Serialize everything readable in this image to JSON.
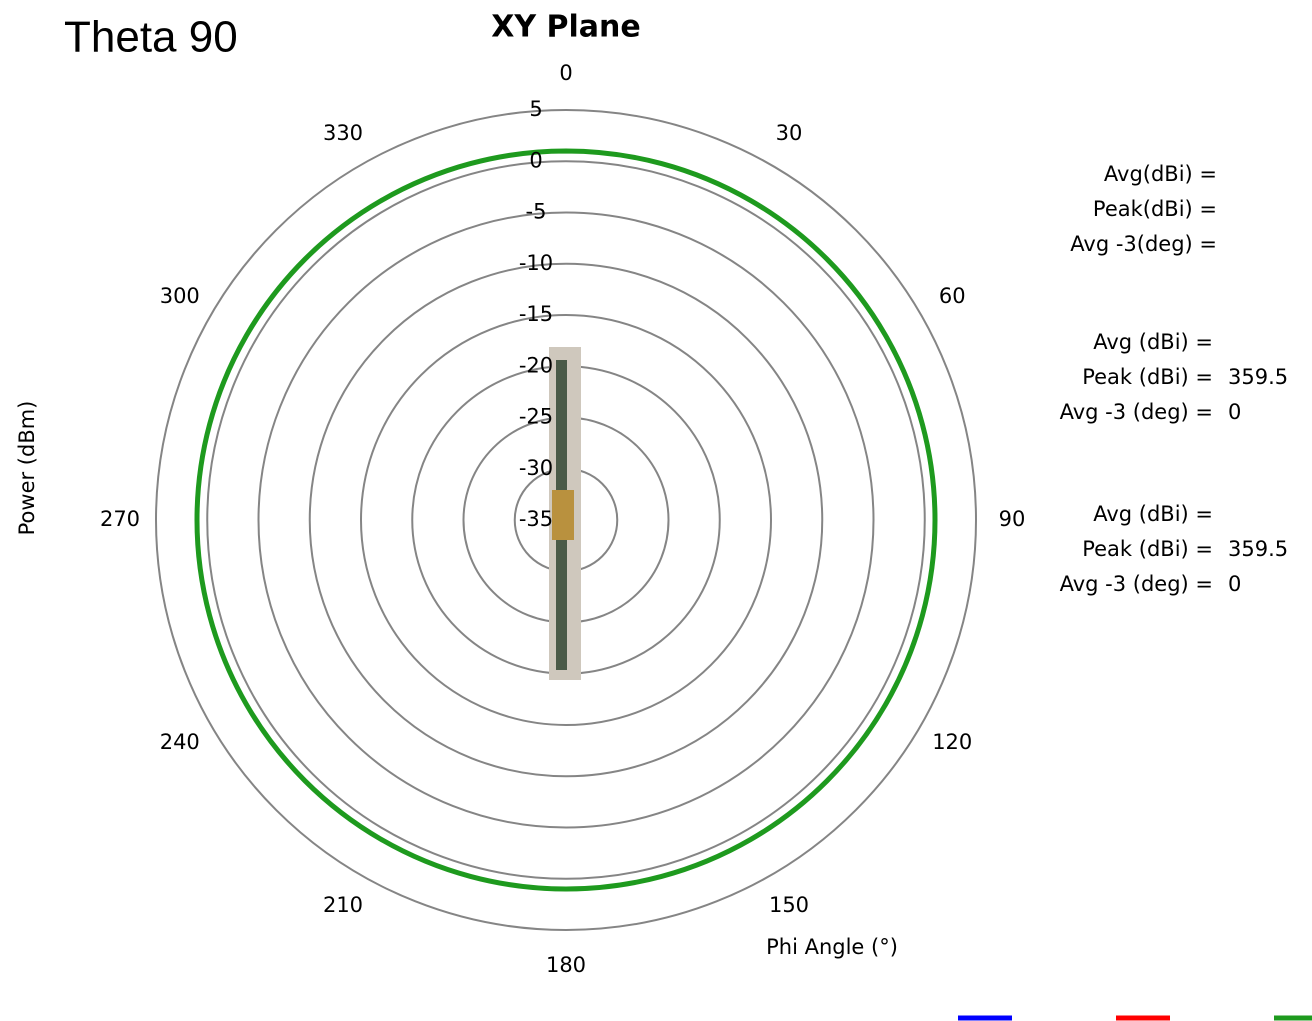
{
  "chart_data": {
    "type": "polar",
    "heading": "Theta 90",
    "title": "XY Plane",
    "radial_axis_label": "Power (dBm)",
    "angle_axis_label": "Phi Angle (°)",
    "x": [
      0,
      30,
      60,
      90,
      120,
      150,
      180,
      210,
      240,
      270,
      300,
      330
    ],
    "xticks": [
      0,
      30,
      60,
      90,
      120,
      150,
      180,
      210,
      240,
      270,
      300,
      330
    ],
    "ylim": [
      -35,
      5
    ],
    "yticks": [
      -35,
      -30,
      -25,
      -20,
      -15,
      -10,
      -5,
      0,
      5
    ],
    "grid": true,
    "series": [
      {
        "color": "#0000ff",
        "values": [
          null,
          null,
          null,
          null,
          null,
          null,
          null,
          null,
          null,
          null,
          null,
          null
        ]
      },
      {
        "color": "#ff0000",
        "values": [
          null,
          null,
          null,
          null,
          null,
          null,
          null,
          null,
          null,
          null,
          null,
          null
        ]
      },
      {
        "color": "#1e9a1e",
        "values": [
          1,
          1,
          1,
          1,
          1,
          1,
          1,
          1,
          1,
          1,
          1,
          1
        ]
      }
    ],
    "stats": [
      {
        "avg": "Avg(dBi) =",
        "peak": "Peak(dBi) =",
        "avg3": "Avg -3(deg) ="
      },
      {
        "avg": "Avg (dBi) =",
        "peak": "Peak (dBi) =",
        "peak_value": 359.5,
        "avg3": "Avg -3 (deg) =",
        "avg3_value": 0
      },
      {
        "avg": "Avg (dBi) =",
        "peak": "Peak (dBi) =",
        "peak_value": 359.5,
        "avg3": "Avg -3 (deg) =",
        "avg3_value": 0
      }
    ]
  }
}
